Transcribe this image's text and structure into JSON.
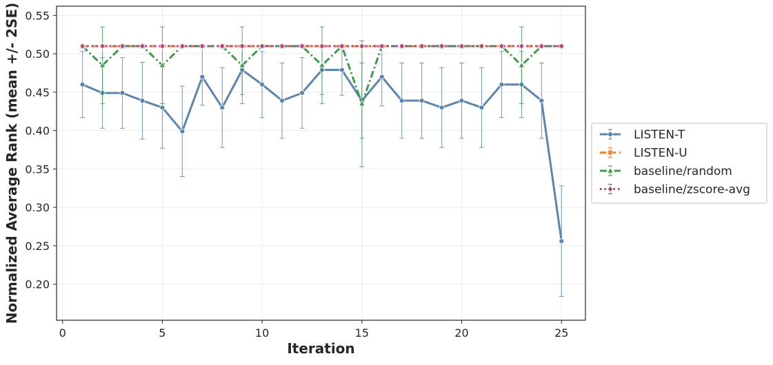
{
  "chart_data": {
    "type": "line",
    "title": "",
    "xlabel": "Iteration",
    "ylabel": "Normalized Average Rank (mean +/- 2SE)",
    "xlim": [
      -0.3,
      26.2
    ],
    "ylim": [
      0.153,
      0.562
    ],
    "xticks": [
      0,
      5,
      10,
      15,
      20,
      25
    ],
    "yticks": [
      0.2,
      0.25,
      0.3,
      0.35,
      0.4,
      0.45,
      0.5,
      0.55
    ],
    "grid": true,
    "legend_position": "center-right-outside",
    "x": [
      1,
      2,
      3,
      4,
      5,
      6,
      7,
      8,
      9,
      10,
      11,
      12,
      13,
      14,
      15,
      16,
      17,
      18,
      19,
      20,
      21,
      22,
      23,
      24,
      25
    ],
    "series": [
      {
        "name": "LISTEN-T",
        "color": "#5b84b1",
        "line_style": "solid",
        "marker": "circle",
        "values": [
          0.46,
          0.449,
          0.449,
          0.439,
          0.43,
          0.399,
          0.47,
          0.43,
          0.479,
          0.46,
          0.439,
          0.449,
          0.479,
          0.479,
          0.439,
          0.47,
          0.439,
          0.439,
          0.43,
          0.439,
          0.43,
          0.46,
          0.46,
          0.439,
          0.256
        ],
        "error": [
          0.043,
          0.046,
          0.046,
          0.05,
          0.053,
          0.059,
          0.037,
          0.052,
          0.032,
          0.043,
          0.049,
          0.046,
          0.032,
          0.033,
          0.049,
          0.038,
          0.049,
          0.049,
          0.052,
          0.049,
          0.052,
          0.043,
          0.043,
          0.049,
          0.072
        ]
      },
      {
        "name": "LISTEN-U",
        "color": "#ee8a3b",
        "line_style": "dashed",
        "marker": "square",
        "values": [
          0.51,
          0.51,
          0.51,
          0.51,
          0.51,
          0.51,
          0.51,
          0.51,
          0.51,
          0.51,
          0.51,
          0.51,
          0.51,
          0.51,
          0.51,
          0.51,
          0.51,
          0.51,
          0.51,
          0.51,
          0.51,
          0.51,
          0.51,
          0.51,
          0.51
        ],
        "error": [
          0,
          0,
          0,
          0,
          0,
          0,
          0,
          0,
          0,
          0,
          0,
          0,
          0,
          0,
          0,
          0,
          0,
          0,
          0,
          0,
          0,
          0,
          0,
          0,
          0
        ]
      },
      {
        "name": "baseline/random",
        "color": "#3f9a4a",
        "line_style": "dashdot",
        "marker": "triangle",
        "values": [
          0.51,
          0.485,
          0.51,
          0.51,
          0.485,
          0.51,
          0.51,
          0.51,
          0.485,
          0.51,
          0.51,
          0.51,
          0.485,
          0.51,
          0.435,
          0.51,
          0.51,
          0.51,
          0.51,
          0.51,
          0.51,
          0.51,
          0.485,
          0.51,
          0.51
        ],
        "error": [
          0,
          0.05,
          0,
          0,
          0.05,
          0,
          0,
          0,
          0.05,
          0,
          0,
          0,
          0.05,
          0,
          0.082,
          0,
          0,
          0,
          0,
          0,
          0,
          0,
          0.05,
          0,
          0
        ]
      },
      {
        "name": "baseline/zscore-avg",
        "color": "#b0407f",
        "line_style": "dotted",
        "marker": "diamond",
        "values": [
          0.51,
          0.51,
          0.51,
          0.51,
          0.51,
          0.51,
          0.51,
          0.51,
          0.51,
          0.51,
          0.51,
          0.51,
          0.51,
          0.51,
          0.51,
          0.51,
          0.51,
          0.51,
          0.51,
          0.51,
          0.51,
          0.51,
          0.51,
          0.51,
          0.51
        ],
        "error": [
          0,
          0,
          0,
          0,
          0,
          0,
          0,
          0,
          0,
          0,
          0,
          0,
          0,
          0,
          0,
          0,
          0,
          0,
          0,
          0,
          0,
          0,
          0,
          0,
          0
        ]
      }
    ]
  }
}
